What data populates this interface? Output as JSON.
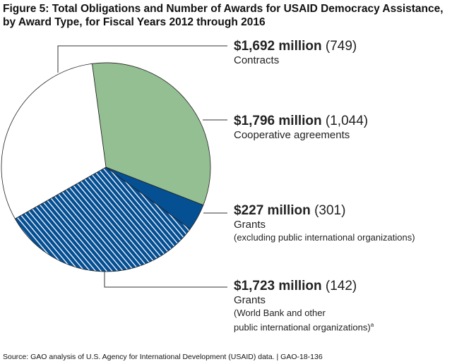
{
  "chart_data": {
    "type": "pie",
    "title": "Figure 5: Total Obligations and Number of Awards for USAID Democracy Assistance, by Award Type, for Fiscal Years 2012 through 2016",
    "unit": "millions of dollars",
    "slices": [
      {
        "label": "Cooperative agreements",
        "value": 1796,
        "value_label": "$1,796 million",
        "count_label": "(1,044)",
        "color": "#94bf92",
        "pattern": "solid",
        "note": ""
      },
      {
        "label": "Grants",
        "value": 227,
        "value_label": "$227 million",
        "count_label": "(301)",
        "color": "#054f93",
        "pattern": "solid",
        "note": "(excluding public international organizations)"
      },
      {
        "label": "Grants",
        "value": 1723,
        "value_label": "$1,723 million",
        "count_label": "(142)",
        "color": "#054f93",
        "pattern": "hatched",
        "note": "(World Bank and other",
        "note2": "public international organizations)",
        "footnote_marker": "a"
      },
      {
        "label": "Contracts",
        "value": 1692,
        "value_label": "$1,692 million",
        "count_label": "(749)",
        "color": "#ffffff",
        "pattern": "solid",
        "note": ""
      }
    ],
    "start_angle_deg": -7.6,
    "legend": "right"
  },
  "source": "Source: GAO analysis of U.S. Agency for International Development (USAID) data.  |  GAO-18-136"
}
